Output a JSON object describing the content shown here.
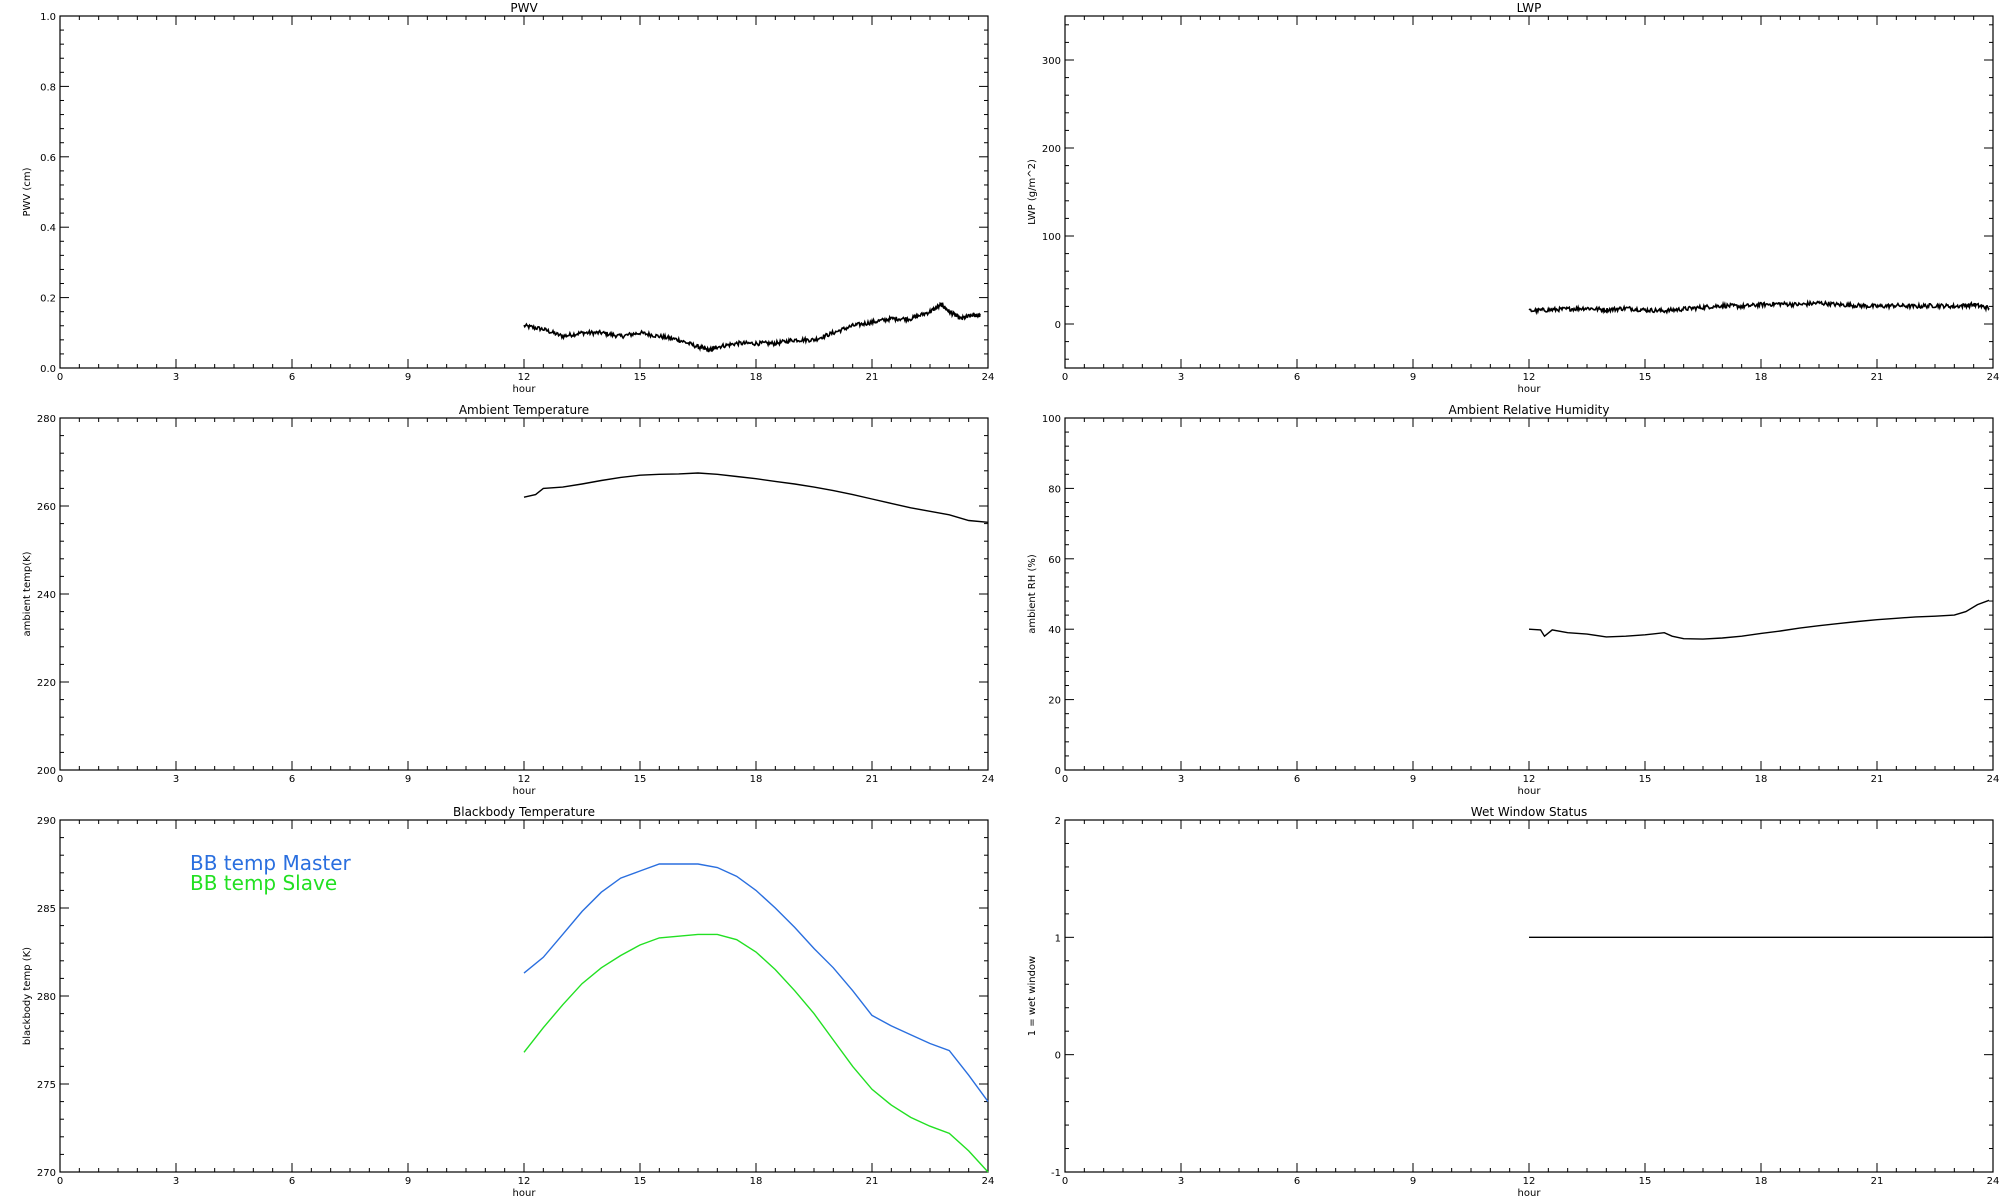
{
  "chart_data": [
    {
      "id": "pwv",
      "type": "line",
      "title": "PWV",
      "xlabel": "hour",
      "ylabel": "PWV (cm)",
      "xlim": [
        0,
        24
      ],
      "ylim": [
        0.0,
        1.0
      ],
      "xticks": [
        "0",
        "3",
        "6",
        "9",
        "12",
        "15",
        "18",
        "21",
        "24"
      ],
      "yticks": [
        "0.0",
        "0.2",
        "0.4",
        "0.6",
        "0.8",
        "1.0"
      ],
      "noisy": true,
      "series": [
        {
          "color": "#000000",
          "x": [
            12,
            12.5,
            13,
            13.5,
            14,
            14.5,
            15,
            15.5,
            16,
            16.5,
            16.8,
            17,
            17.5,
            18,
            18.5,
            19,
            19.5,
            20,
            20.5,
            21,
            21.5,
            22,
            22.5,
            22.8,
            23,
            23.3,
            23.6,
            23.8
          ],
          "y": [
            0.12,
            0.11,
            0.09,
            0.1,
            0.1,
            0.09,
            0.1,
            0.09,
            0.08,
            0.06,
            0.05,
            0.06,
            0.07,
            0.07,
            0.07,
            0.08,
            0.08,
            0.1,
            0.12,
            0.13,
            0.14,
            0.14,
            0.16,
            0.18,
            0.16,
            0.14,
            0.15,
            0.15
          ]
        }
      ]
    },
    {
      "id": "lwp",
      "type": "line",
      "title": "LWP",
      "xlabel": "hour",
      "ylabel": "LWP (g/m^2)",
      "xlim": [
        0,
        24
      ],
      "ylim": [
        -50,
        350
      ],
      "xticks": [
        "0",
        "3",
        "6",
        "9",
        "12",
        "15",
        "18",
        "21",
        "24"
      ],
      "yticks": [
        "0",
        "100",
        "200",
        "300"
      ],
      "noisy": true,
      "series": [
        {
          "color": "#000000",
          "x": [
            12,
            12.5,
            13,
            13.5,
            14,
            14.5,
            15,
            15.5,
            16,
            16.5,
            17,
            17.5,
            18,
            18.5,
            19,
            19.5,
            20,
            20.5,
            21,
            21.5,
            22,
            22.5,
            23,
            23.5,
            23.9
          ],
          "y": [
            15,
            16,
            17,
            18,
            16,
            18,
            16,
            15,
            17,
            19,
            21,
            20,
            22,
            23,
            22,
            24,
            22,
            21,
            20,
            21,
            20,
            21,
            20,
            22,
            18
          ]
        }
      ]
    },
    {
      "id": "ambient-temp",
      "type": "line",
      "title": "Ambient Temperature",
      "xlabel": "hour",
      "ylabel": "ambient temp(K)",
      "xlim": [
        0,
        24
      ],
      "ylim": [
        200,
        280
      ],
      "xticks": [
        "0",
        "3",
        "6",
        "9",
        "12",
        "15",
        "18",
        "21",
        "24"
      ],
      "yticks": [
        "200",
        "220",
        "240",
        "260",
        "280"
      ],
      "noisy": false,
      "series": [
        {
          "color": "#000000",
          "x": [
            12,
            12.3,
            12.5,
            13,
            13.5,
            14,
            14.5,
            15,
            15.5,
            16,
            16.5,
            17,
            17.5,
            18,
            18.5,
            19,
            19.5,
            20,
            20.5,
            21,
            21.5,
            22,
            22.5,
            23,
            23.5,
            24
          ],
          "y": [
            262,
            262.6,
            264,
            264.3,
            265,
            265.8,
            266.5,
            267,
            267.2,
            267.3,
            267.5,
            267.2,
            266.7,
            266.2,
            265.6,
            265,
            264.3,
            263.5,
            262.6,
            261.6,
            260.6,
            259.6,
            258.8,
            258,
            256.7,
            256.3
          ]
        }
      ]
    },
    {
      "id": "ambient-rh",
      "type": "line",
      "title": "Ambient Relative Humidity",
      "xlabel": "hour",
      "ylabel": "ambient RH (%)",
      "xlim": [
        0,
        24
      ],
      "ylim": [
        0,
        100
      ],
      "xticks": [
        "0",
        "3",
        "6",
        "9",
        "12",
        "15",
        "18",
        "21",
        "24"
      ],
      "yticks": [
        "0",
        "20",
        "40",
        "60",
        "80",
        "100"
      ],
      "noisy": false,
      "series": [
        {
          "color": "#000000",
          "x": [
            12,
            12.3,
            12.4,
            12.6,
            13,
            13.5,
            14,
            14.5,
            15,
            15.5,
            15.7,
            16,
            16.5,
            17,
            17.5,
            18,
            18.5,
            19,
            19.5,
            20,
            20.5,
            21,
            21.5,
            22,
            22.5,
            23,
            23.3,
            23.6,
            23.9
          ],
          "y": [
            40,
            39.8,
            38,
            39.8,
            39,
            38.6,
            37.8,
            38,
            38.4,
            39,
            38,
            37.3,
            37.2,
            37.5,
            38,
            38.8,
            39.5,
            40.3,
            41,
            41.6,
            42.2,
            42.7,
            43.1,
            43.5,
            43.7,
            44,
            45,
            47,
            48.2
          ]
        }
      ]
    },
    {
      "id": "bb-temp",
      "type": "line",
      "title": "Blackbody Temperature",
      "xlabel": "hour",
      "ylabel": "blackbody temp (K)",
      "xlim": [
        0,
        24
      ],
      "ylim": [
        270,
        290
      ],
      "xticks": [
        "0",
        "3",
        "6",
        "9",
        "12",
        "15",
        "18",
        "21",
        "24"
      ],
      "yticks": [
        "270",
        "275",
        "280",
        "285",
        "290"
      ],
      "noisy": false,
      "legend": [
        "BB temp Master",
        "BB temp Slave"
      ],
      "series": [
        {
          "name": "BB temp Master",
          "color": "#2a6fdf",
          "x": [
            12,
            12.5,
            13,
            13.5,
            14,
            14.5,
            15,
            15.5,
            16,
            16.5,
            17,
            17.5,
            18,
            18.5,
            19,
            19.5,
            20,
            20.5,
            21,
            21.5,
            22,
            22.5,
            23,
            23.5,
            24
          ],
          "y": [
            281.3,
            282.2,
            283.5,
            284.8,
            285.9,
            286.7,
            287.1,
            287.5,
            287.5,
            287.5,
            287.3,
            286.8,
            286.0,
            285.0,
            283.9,
            282.7,
            281.6,
            280.3,
            278.9,
            278.3,
            277.8,
            277.3,
            276.9,
            275.5,
            274
          ]
        },
        {
          "name": "BB temp Slave",
          "color": "#22e022",
          "x": [
            12,
            12.5,
            13,
            13.5,
            14,
            14.5,
            15,
            15.5,
            16,
            16.5,
            17,
            17.5,
            18,
            18.5,
            19,
            19.5,
            20,
            20.5,
            21,
            21.5,
            22,
            22.5,
            23,
            23.5,
            24
          ],
          "y": [
            276.8,
            278.2,
            279.5,
            280.7,
            281.6,
            282.3,
            282.9,
            283.3,
            283.4,
            283.5,
            283.5,
            283.2,
            282.5,
            281.5,
            280.3,
            279.0,
            277.5,
            276.0,
            274.7,
            273.8,
            273.1,
            272.6,
            272.2,
            271.2,
            270
          ]
        }
      ]
    },
    {
      "id": "wet-window",
      "type": "line",
      "title": "Wet Window Status",
      "xlabel": "hour",
      "ylabel": "1 = wet window",
      "xlim": [
        0,
        24
      ],
      "ylim": [
        -1,
        2
      ],
      "xticks": [
        "0",
        "3",
        "6",
        "9",
        "12",
        "15",
        "18",
        "21",
        "24"
      ],
      "yticks": [
        "-1",
        "0",
        "1",
        "2"
      ],
      "noisy": false,
      "series": [
        {
          "color": "#000000",
          "x": [
            12,
            24
          ],
          "y": [
            1,
            1
          ]
        }
      ]
    }
  ]
}
